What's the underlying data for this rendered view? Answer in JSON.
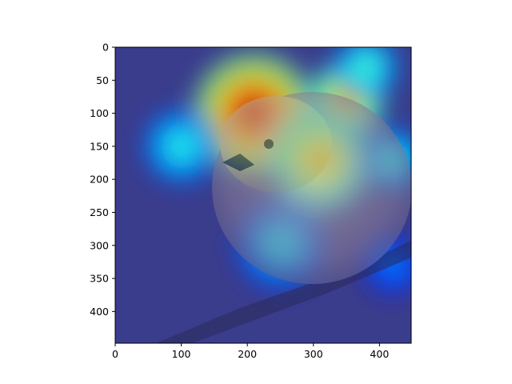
{
  "chart_data": {
    "type": "heatmap",
    "title": "",
    "xlabel": "",
    "ylabel": "",
    "xlim": [
      0,
      448
    ],
    "ylim": [
      448,
      0
    ],
    "x_ticks": [
      0,
      100,
      200,
      300,
      400
    ],
    "y_ticks": [
      0,
      50,
      100,
      150,
      200,
      250,
      300,
      350,
      400
    ],
    "x_tick_labels": [
      "0",
      "100",
      "200",
      "300",
      "400"
    ],
    "y_tick_labels": [
      "0",
      "50",
      "100",
      "150",
      "200",
      "250",
      "300",
      "350",
      "400"
    ],
    "grid": false,
    "colormap": "jet",
    "image_content": "activation heatmap overlaid on a bird (sparrow) perched on a branch",
    "heat_blobs": [
      {
        "x": 210,
        "y": 100,
        "r": 95,
        "value": 1.0
      },
      {
        "x": 350,
        "y": 80,
        "r": 60,
        "value": 0.8
      },
      {
        "x": 310,
        "y": 170,
        "r": 80,
        "value": 0.75
      },
      {
        "x": 100,
        "y": 150,
        "r": 60,
        "value": 0.45
      },
      {
        "x": 420,
        "y": 170,
        "r": 50,
        "value": 0.45
      },
      {
        "x": 250,
        "y": 300,
        "r": 70,
        "value": 0.4
      },
      {
        "x": 420,
        "y": 330,
        "r": 45,
        "value": 0.3
      },
      {
        "x": 380,
        "y": 30,
        "r": 50,
        "value": 0.5
      }
    ]
  }
}
